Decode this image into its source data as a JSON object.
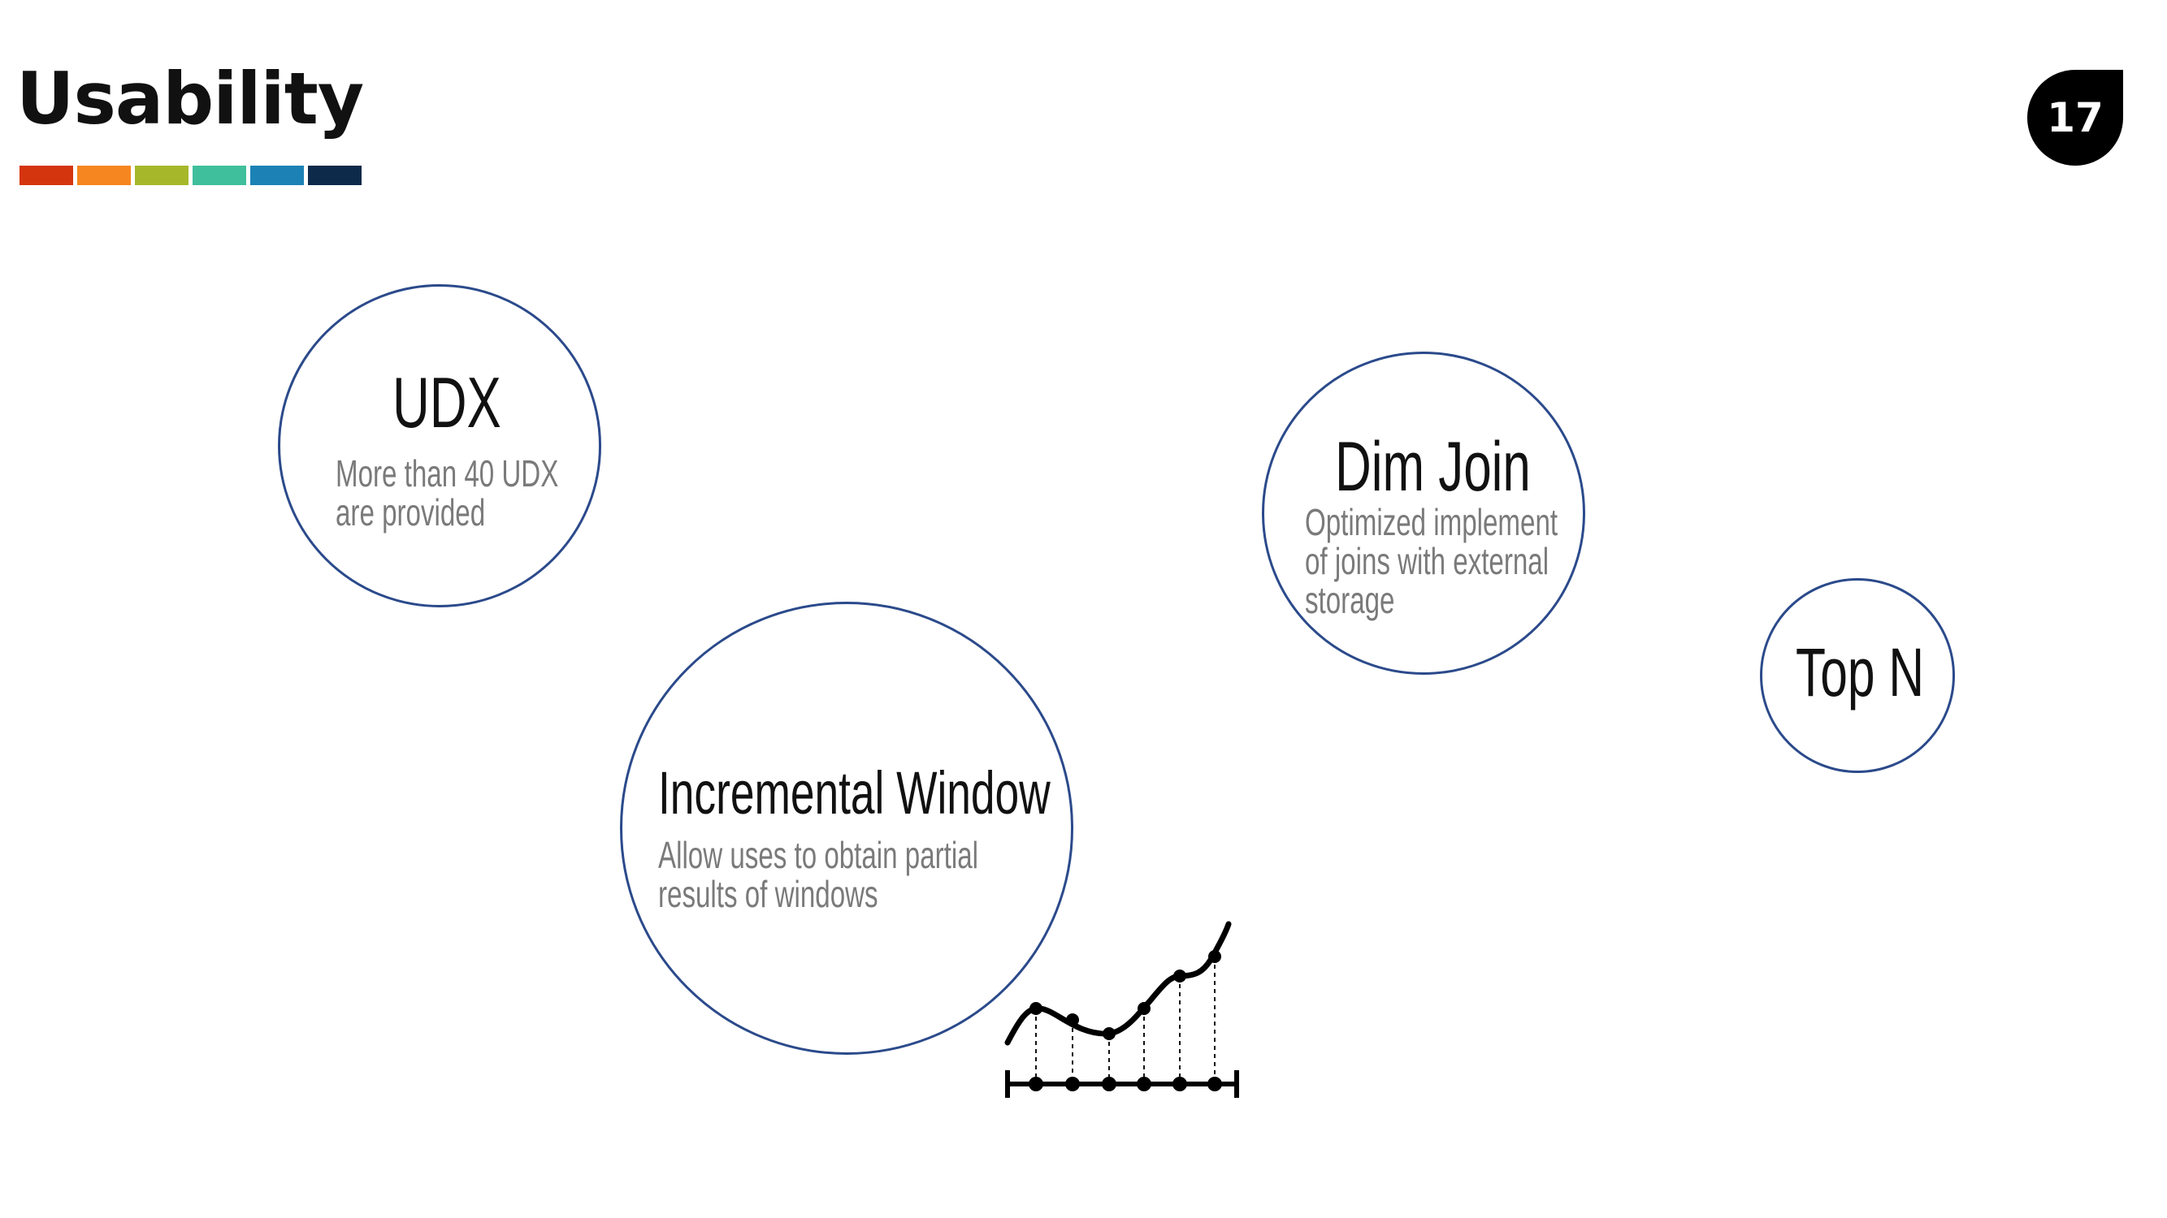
{
  "slide": {
    "title": "Usability",
    "page_number": "17",
    "stripe_colors": [
      "#d5350e",
      "#f6861f",
      "#a6b82a",
      "#3fbf9b",
      "#1c82b5",
      "#0d2a4a"
    ]
  },
  "bubbles": {
    "udx": {
      "title": "UDX",
      "desc": [
        "More than 40 UDX",
        "are provided"
      ]
    },
    "dim_join": {
      "title": "Dim Join",
      "desc": [
        "Optimized implement",
        "of joins with external",
        "storage"
      ]
    },
    "incremental_window": {
      "title": "Incremental Window",
      "desc": [
        "Allow uses to obtain partial",
        "results of windows"
      ]
    },
    "top_n": {
      "title": "Top N"
    }
  },
  "icons": {
    "incremental_chart": "line-chart-icon"
  },
  "colors": {
    "circle_border": "#2b4a8b",
    "desc_text": "#7a7a7a"
  }
}
